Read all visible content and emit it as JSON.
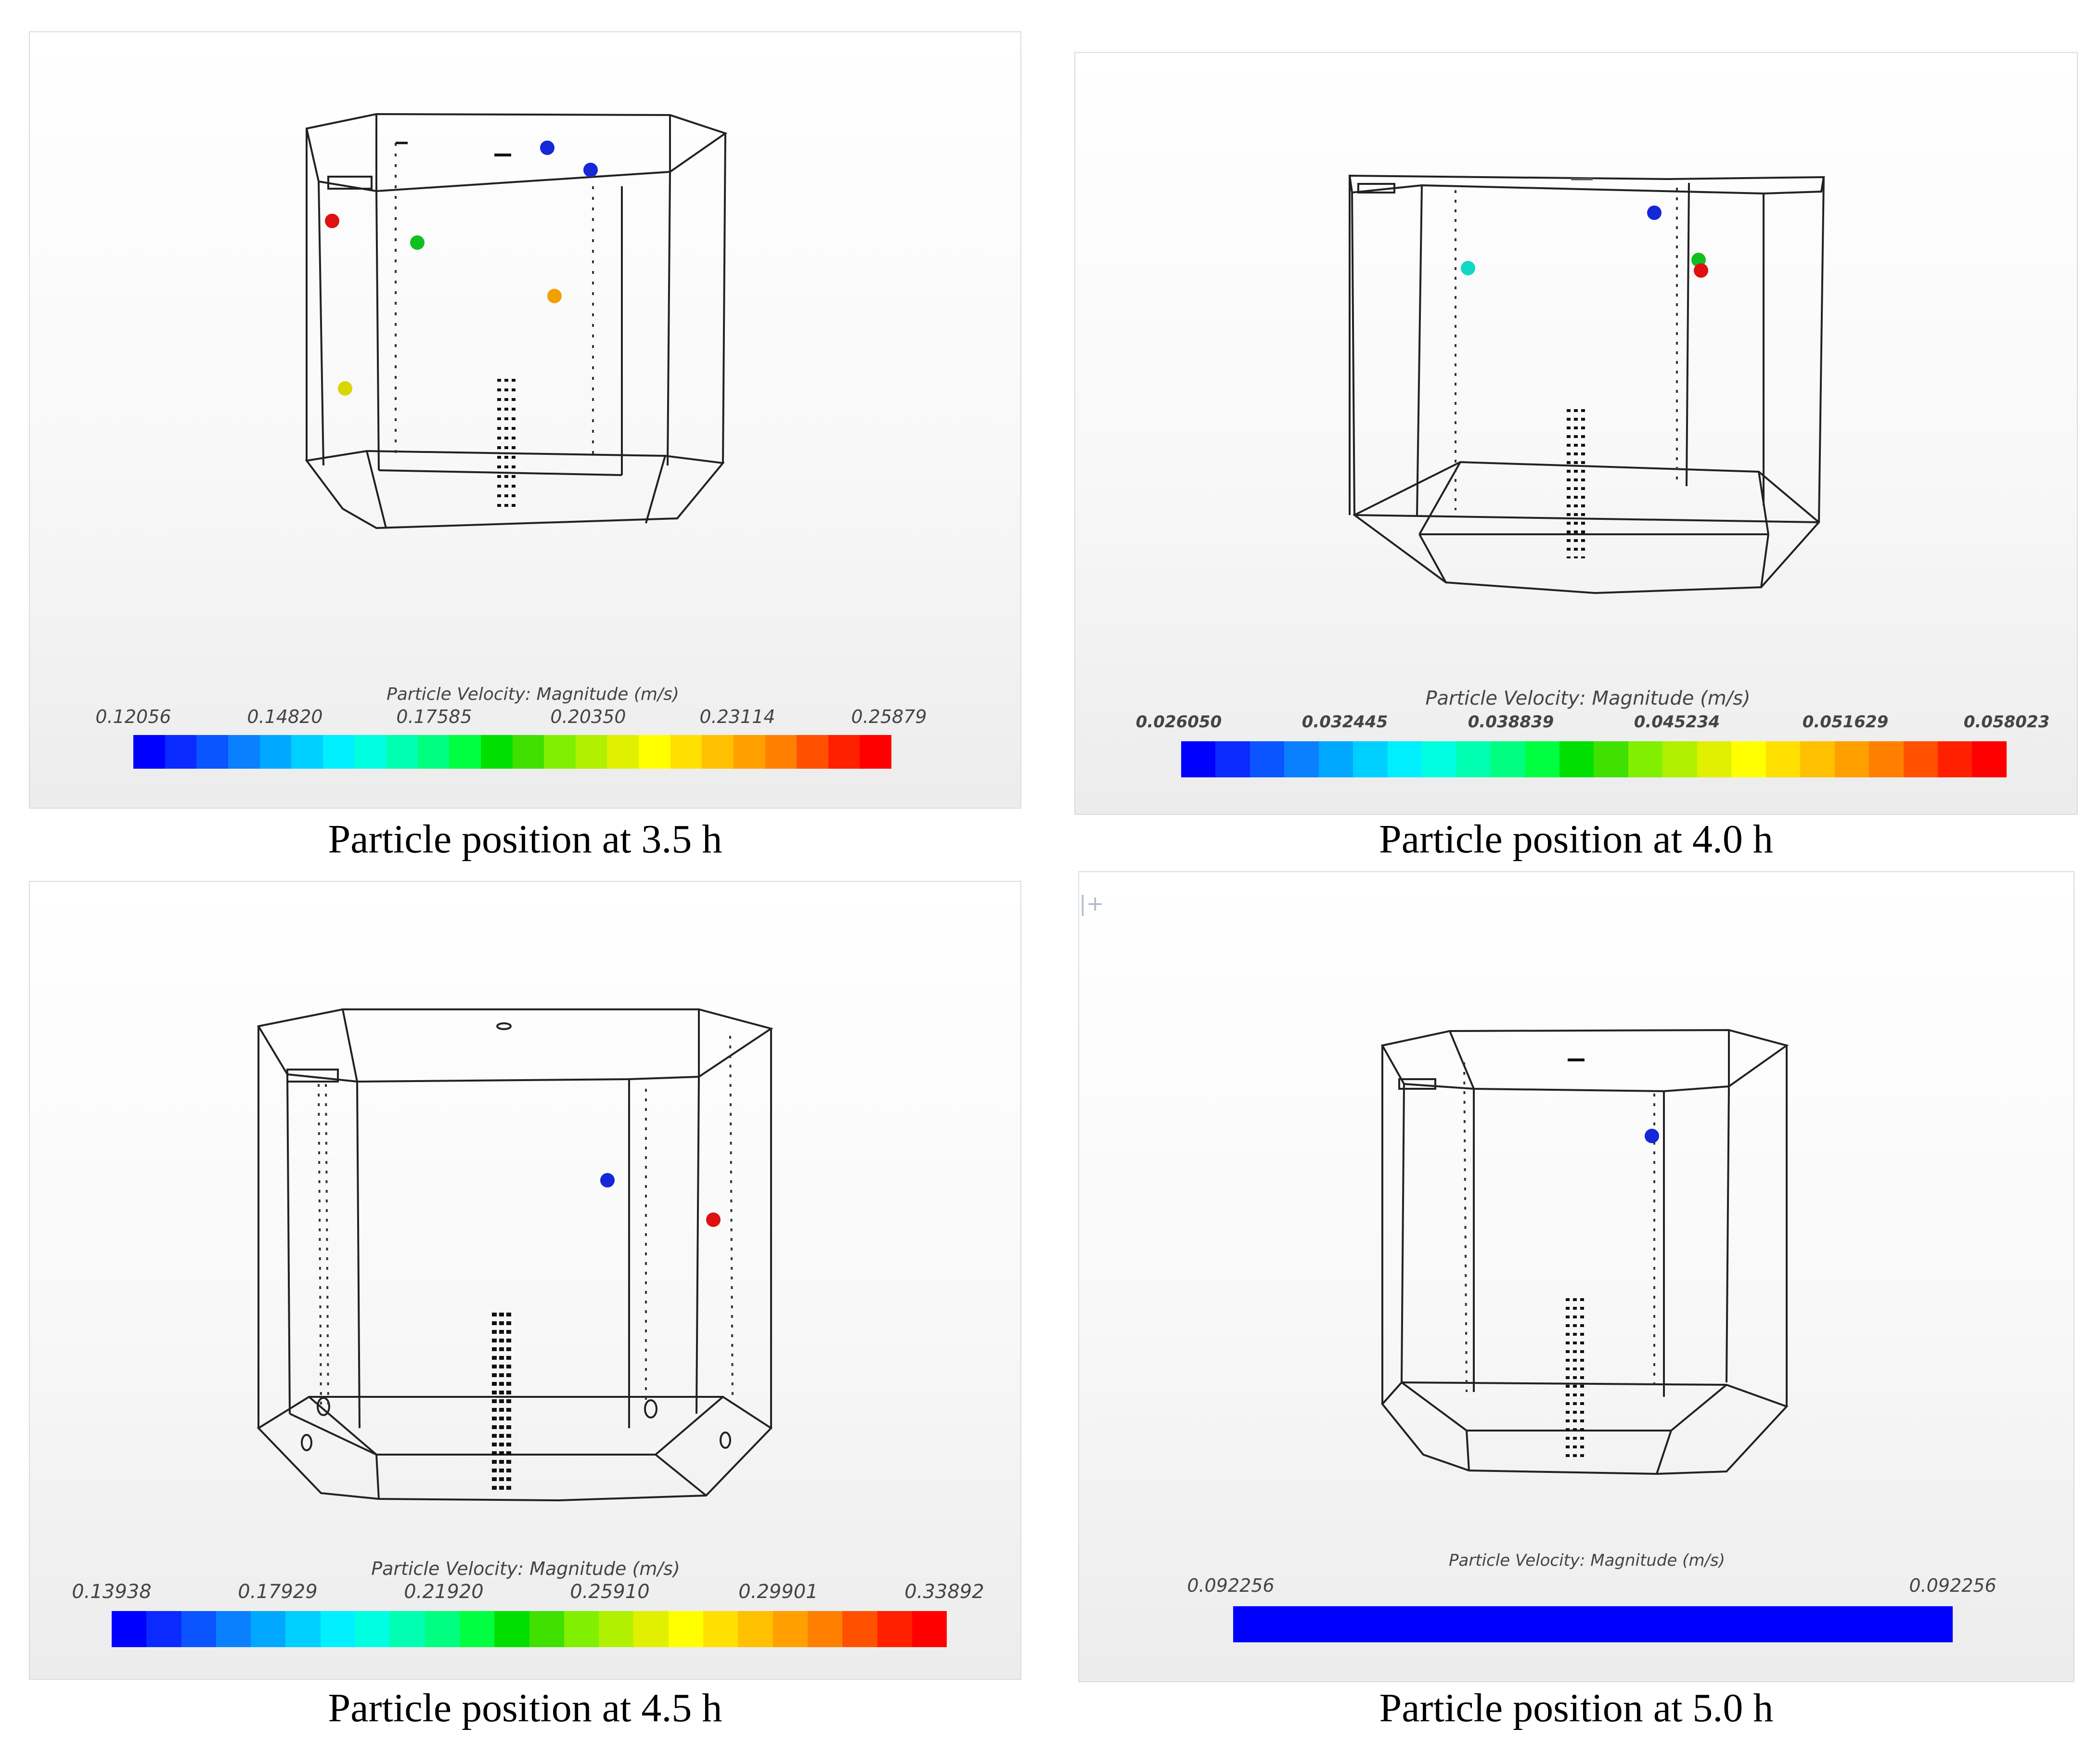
{
  "figure": {
    "panels": [
      {
        "id": "p35",
        "caption": "Particle position at 3.5 h",
        "colorbar": {
          "title": "Particle Velocity: Magnitude (m/s)",
          "ticks": [
            "0.12056",
            "0.14820",
            "0.17585",
            "0.20350",
            "0.23114",
            "0.25879"
          ],
          "uniform": false
        },
        "particles": [
          "red",
          "green",
          "blue",
          "blue",
          "orange",
          "yellow"
        ]
      },
      {
        "id": "p40",
        "caption": "Particle position at 4.0 h",
        "colorbar": {
          "title": "Particle Velocity: Magnitude (m/s)",
          "ticks": [
            "0.026050",
            "0.032445",
            "0.038839",
            "0.045234",
            "0.051629",
            "0.058023"
          ],
          "uniform": false
        },
        "particles": [
          "cyan",
          "blue",
          "green",
          "red"
        ]
      },
      {
        "id": "p45",
        "caption": "Particle position at 4.5 h",
        "colorbar": {
          "title": "Particle Velocity: Magnitude (m/s)",
          "ticks": [
            "0.13938",
            "0.17929",
            "0.21920",
            "0.25910",
            "0.29901",
            "0.33892"
          ],
          "uniform": false
        },
        "particles": [
          "blue",
          "red"
        ]
      },
      {
        "id": "p50",
        "caption": "Particle position at 5.0 h",
        "colorbar": {
          "title": "Particle Velocity: Magnitude (m/s)",
          "ticks": [
            "0.092256",
            "0.092256"
          ],
          "uniform": true
        },
        "particles": [
          "blue"
        ]
      }
    ],
    "colors": {
      "red": "#e01010",
      "green": "#10c020",
      "blue": "#1428d8",
      "orange": "#f0a000",
      "yellow": "#d8d800",
      "cyan": "#10d8c8",
      "wireframe": "#222222",
      "uniform_bar": "#0000ff"
    },
    "legend_colors": [
      "#0000ff",
      "#0a2aff",
      "#0a55ff",
      "#0a80ff",
      "#00a8ff",
      "#00d0ff",
      "#00f0ff",
      "#00ffe0",
      "#00ffb0",
      "#00ff80",
      "#00ff40",
      "#00e000",
      "#40e000",
      "#80f000",
      "#b0f000",
      "#e0f000",
      "#ffff00",
      "#ffe000",
      "#ffc000",
      "#ffa000",
      "#ff8000",
      "#ff5000",
      "#ff2000",
      "#ff0000"
    ],
    "corner_icon": "plus-cursor-icon"
  }
}
